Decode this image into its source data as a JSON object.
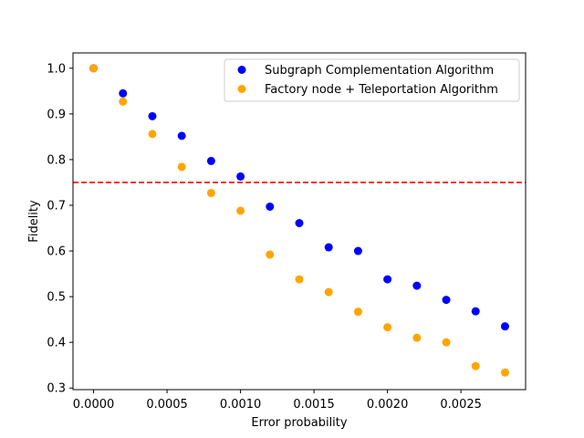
{
  "chart_data": {
    "type": "scatter",
    "xlabel": "Error probability",
    "ylabel": "Fidelity",
    "xlim": [
      -0.00014,
      0.00294
    ],
    "ylim": [
      0.2965,
      1.0335
    ],
    "xticks": [
      "0.0000",
      "0.0005",
      "0.0010",
      "0.0015",
      "0.0020",
      "0.0025"
    ],
    "xtick_values": [
      0,
      0.0005,
      0.001,
      0.0015,
      0.002,
      0.0025
    ],
    "yticks": [
      "0.3",
      "0.4",
      "0.5",
      "0.6",
      "0.7",
      "0.8",
      "0.9",
      "1.0"
    ],
    "ytick_values": [
      0.3,
      0.4,
      0.5,
      0.6,
      0.7,
      0.8,
      0.9,
      1.0
    ],
    "grid": false,
    "legend_position": "top-right",
    "hline": {
      "y": 0.75,
      "color": "#ff0000",
      "style": "dashed"
    },
    "x": [
      0,
      0.0002,
      0.0004,
      0.0006,
      0.0008,
      0.001,
      0.0012,
      0.0014,
      0.0016,
      0.0018,
      0.002,
      0.0022,
      0.0024,
      0.0026,
      0.0028
    ],
    "series": [
      {
        "name": "Subgraph Complementation Algorithm",
        "color": "#0000ff",
        "values": [
          1.0,
          0.945,
          0.895,
          0.852,
          0.797,
          0.763,
          0.697,
          0.661,
          0.608,
          0.6,
          0.538,
          0.524,
          0.493,
          0.468,
          0.435
        ]
      },
      {
        "name": "Factory node + Teleportation Algorithm",
        "color": "#ffa500",
        "values": [
          1.0,
          0.927,
          0.856,
          0.784,
          0.727,
          0.688,
          0.592,
          0.538,
          0.51,
          0.467,
          0.433,
          0.41,
          0.4,
          0.348,
          0.334
        ]
      }
    ]
  }
}
